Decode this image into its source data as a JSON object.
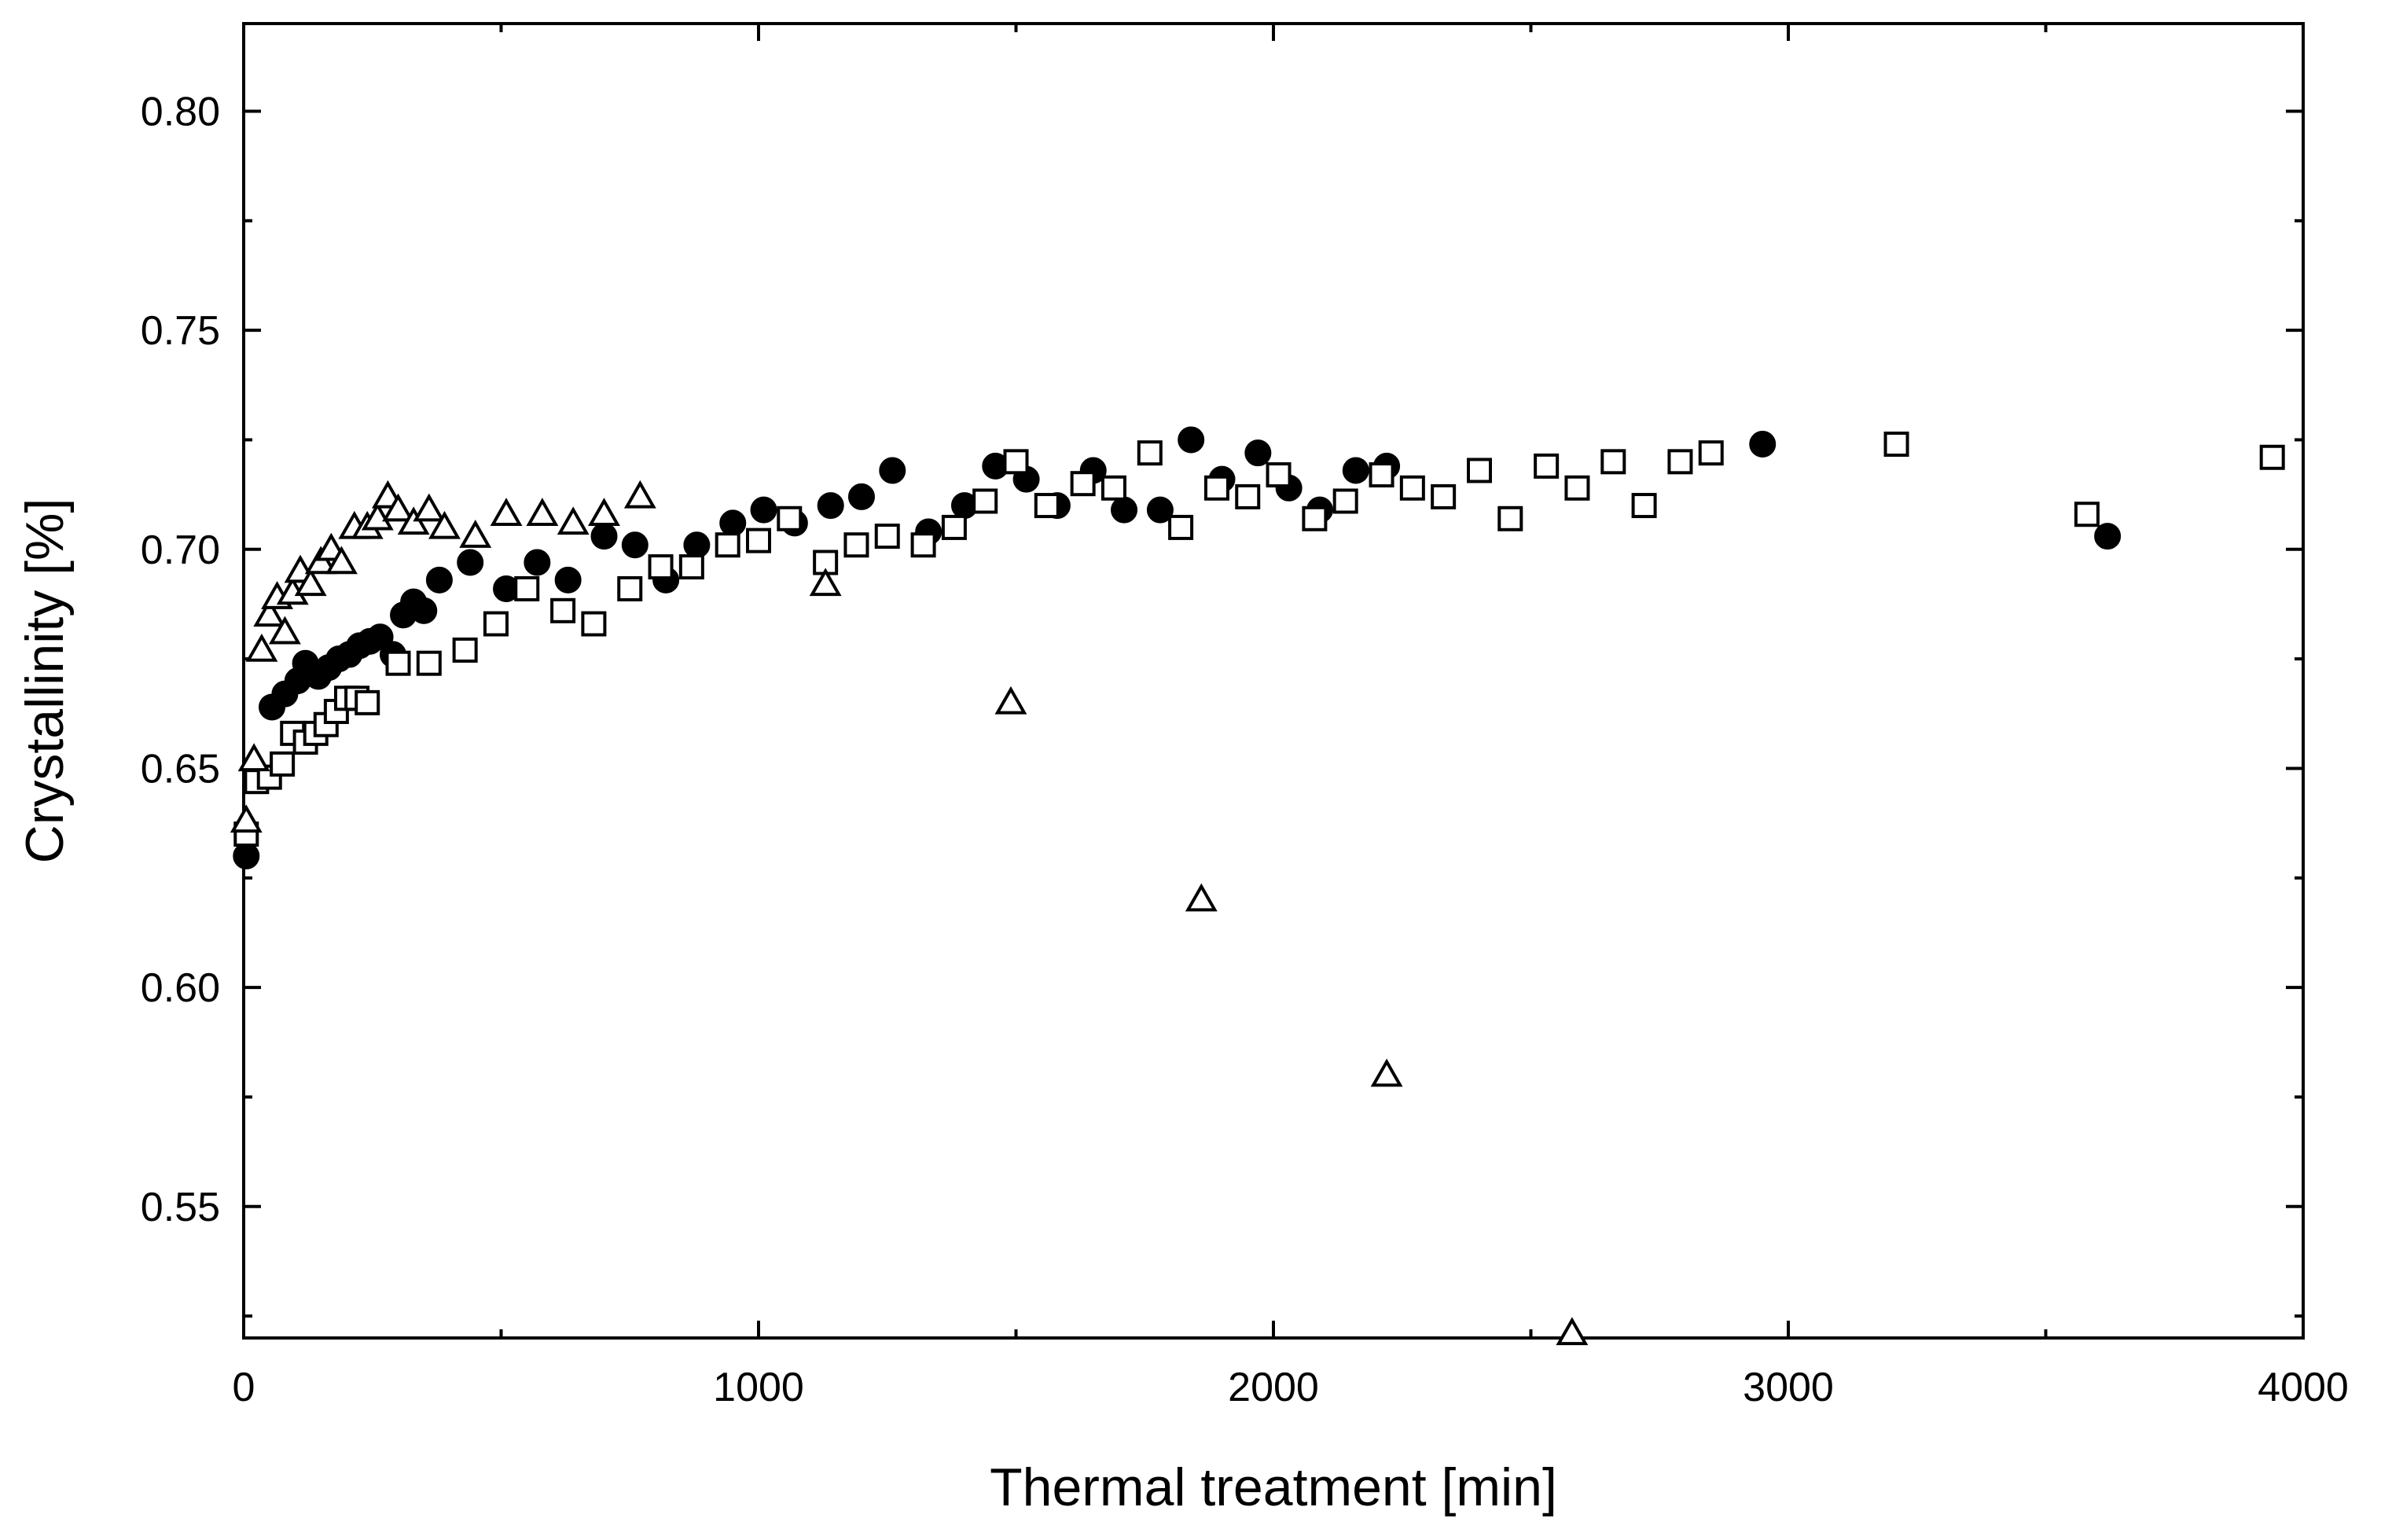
{
  "chart_data": {
    "type": "scatter",
    "title": "",
    "xlabel": "Thermal treatment [min]",
    "ylabel": "Crystallinity [%]",
    "xlim": [
      0,
      4000
    ],
    "ylim": [
      0.52,
      0.82
    ],
    "xticks": [
      0,
      1000,
      2000,
      3000,
      4000
    ],
    "xtick_labels": [
      "0",
      "1000",
      "2000",
      "3000",
      "4000"
    ],
    "yticks": [
      0.55,
      0.6,
      0.65,
      0.7,
      0.75,
      0.8
    ],
    "ytick_labels": [
      "0.55",
      "0.60",
      "0.65",
      "0.70",
      "0.75",
      "0.80"
    ],
    "grid": false,
    "legend": "none",
    "series": [
      {
        "name": "filled circles",
        "marker": "circle-filled",
        "x": [
          5,
          30,
          55,
          80,
          105,
          120,
          145,
          165,
          185,
          205,
          225,
          245,
          265,
          290,
          310,
          330,
          350,
          380,
          440,
          510,
          570,
          630,
          700,
          760,
          820,
          880,
          950,
          1010,
          1070,
          1140,
          1200,
          1260,
          1330,
          1400,
          1460,
          1520,
          1580,
          1650,
          1710,
          1780,
          1840,
          1900,
          1970,
          2030,
          2090,
          2160,
          2220,
          2950,
          3620
        ],
        "y": [
          0.63,
          0.648,
          0.664,
          0.667,
          0.67,
          0.674,
          0.671,
          0.673,
          0.675,
          0.676,
          0.678,
          0.679,
          0.68,
          0.676,
          0.685,
          0.688,
          0.686,
          0.693,
          0.697,
          0.691,
          0.697,
          0.693,
          0.703,
          0.701,
          0.693,
          0.701,
          0.706,
          0.709,
          0.706,
          0.71,
          0.712,
          0.718,
          0.704,
          0.71,
          0.719,
          0.716,
          0.71,
          0.718,
          0.709,
          0.709,
          0.725,
          0.716,
          0.722,
          0.714,
          0.709,
          0.718,
          0.719,
          0.724,
          0.703
        ]
      },
      {
        "name": "open squares",
        "marker": "square-open",
        "x": [
          5,
          25,
          50,
          75,
          95,
          120,
          140,
          160,
          180,
          200,
          220,
          240,
          300,
          360,
          430,
          490,
          550,
          620,
          680,
          750,
          810,
          870,
          940,
          1000,
          1060,
          1130,
          1190,
          1250,
          1320,
          1380,
          1440,
          1500,
          1560,
          1630,
          1690,
          1760,
          1820,
          1890,
          1950,
          2010,
          2080,
          2140,
          2210,
          2270,
          2330,
          2400,
          2460,
          2530,
          2590,
          2660,
          2720,
          2790,
          2850,
          3210,
          3580,
          3940
        ],
        "y": [
          0.635,
          0.647,
          0.648,
          0.651,
          0.658,
          0.656,
          0.658,
          0.66,
          0.663,
          0.666,
          0.666,
          0.665,
          0.674,
          0.674,
          0.677,
          0.683,
          0.691,
          0.686,
          0.683,
          0.691,
          0.696,
          0.696,
          0.701,
          0.702,
          0.707,
          0.697,
          0.701,
          0.703,
          0.701,
          0.705,
          0.711,
          0.72,
          0.71,
          0.715,
          0.714,
          0.722,
          0.705,
          0.714,
          0.712,
          0.717,
          0.707,
          0.711,
          0.717,
          0.714,
          0.712,
          0.718,
          0.707,
          0.719,
          0.714,
          0.72,
          0.71,
          0.72,
          0.722,
          0.724,
          0.708,
          0.721
        ]
      },
      {
        "name": "open triangles",
        "marker": "triangle-open",
        "x": [
          5,
          20,
          35,
          50,
          65,
          80,
          95,
          110,
          130,
          150,
          170,
          190,
          215,
          240,
          260,
          280,
          300,
          330,
          360,
          390,
          450,
          510,
          580,
          640,
          700,
          770,
          1130,
          1490,
          1860,
          2220,
          2580
        ],
        "y": [
          0.638,
          0.652,
          0.677,
          0.685,
          0.689,
          0.681,
          0.69,
          0.695,
          0.692,
          0.697,
          0.7,
          0.697,
          0.705,
          0.705,
          0.707,
          0.712,
          0.709,
          0.706,
          0.709,
          0.705,
          0.703,
          0.708,
          0.708,
          0.706,
          0.708,
          0.712,
          0.692,
          0.665,
          0.62,
          0.58,
          0.521
        ]
      }
    ]
  }
}
